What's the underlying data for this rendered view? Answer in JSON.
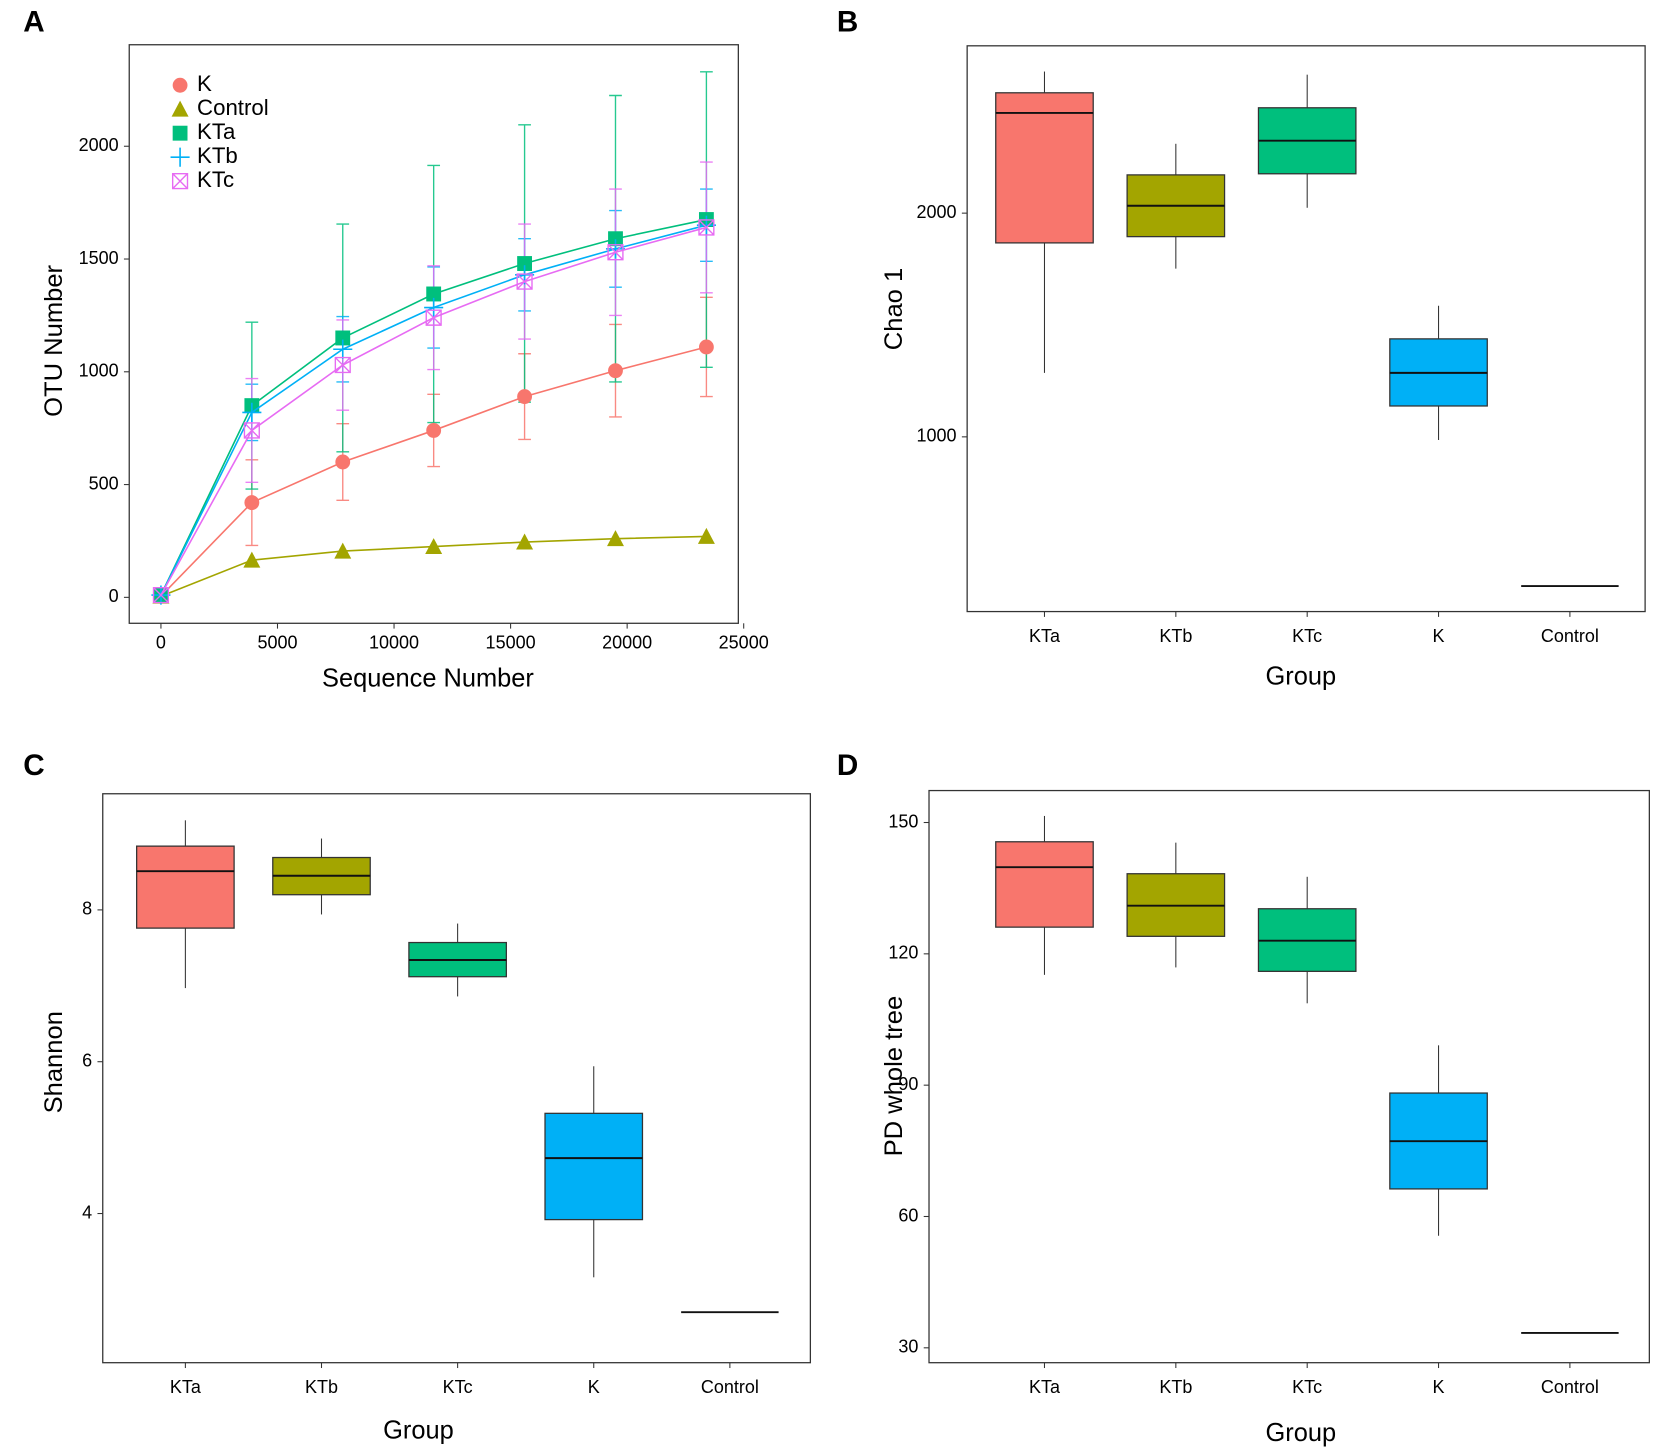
{
  "chart_data": [
    {
      "type": "line",
      "label": "A",
      "x_label": "Sequence Number",
      "y_label": "OTU Number",
      "x": [
        0,
        3900,
        7800,
        11700,
        15600,
        19500,
        23400
      ],
      "series": [
        {
          "name": "K",
          "color": "#F8766D",
          "marker": "circle",
          "values": [
            5,
            420,
            600,
            740,
            890,
            1005,
            1110
          ],
          "errors": [
            5,
            190,
            170,
            160,
            190,
            205,
            220
          ]
        },
        {
          "name": "Control",
          "color": "#A3A500",
          "marker": "triangle",
          "values": [
            5,
            165,
            205,
            225,
            245,
            260,
            270
          ]
        },
        {
          "name": "KTa",
          "color": "#00BF7D",
          "marker": "square",
          "values": [
            10,
            850,
            1150,
            1345,
            1480,
            1590,
            1675
          ],
          "errors": [
            10,
            370,
            505,
            570,
            615,
            635,
            655
          ]
        },
        {
          "name": "KTb",
          "color": "#00B0F6",
          "marker": "plus",
          "values": [
            10,
            820,
            1100,
            1285,
            1430,
            1545,
            1650
          ],
          "errors": [
            10,
            125,
            145,
            180,
            160,
            170,
            160
          ]
        },
        {
          "name": "KTc",
          "color": "#E76BF3",
          "marker": "boxx",
          "values": [
            10,
            740,
            1030,
            1240,
            1400,
            1530,
            1640
          ],
          "errors": [
            10,
            230,
            200,
            230,
            255,
            280,
            290
          ]
        }
      ],
      "xlim": [
        -1360,
        24770
      ],
      "xticks": [
        0,
        5000,
        10000,
        15000,
        20000,
        25000
      ],
      "ylim": [
        -115,
        2450
      ],
      "yticks": [
        0,
        500,
        1000,
        1500,
        2000
      ],
      "legend": "upper left"
    },
    {
      "type": "box",
      "label": "B",
      "x_label": "Group",
      "y_label": "Chao 1",
      "categories": [
        "KTa",
        "KTb",
        "KTc",
        "K",
        "Control"
      ],
      "colors": [
        "#F8766D",
        "#A3A500",
        "#00BF7D",
        "#00B0F6",
        "#E76BF3"
      ],
      "max": [
        2633,
        2310,
        2619,
        1586,
        333
      ],
      "q3": [
        2538,
        2171,
        2471,
        1438,
        333
      ],
      "median": [
        2448,
        2033,
        2324,
        1286,
        333
      ],
      "q1": [
        1867,
        1895,
        2176,
        1138,
        333
      ],
      "min": [
        1286,
        1752,
        2024,
        986,
        333
      ],
      "ylim": [
        219,
        2748
      ],
      "yticks": [
        1000,
        2000
      ]
    },
    {
      "type": "box",
      "label": "C",
      "x_label": "Group",
      "y_label": "Shannon",
      "categories": [
        "KTa",
        "KTb",
        "KTc",
        "K",
        "Control"
      ],
      "colors": [
        "#F8766D",
        "#A3A500",
        "#00BF7D",
        "#00B0F6",
        "#E76BF3"
      ],
      "max": [
        9.18,
        8.94,
        7.82,
        5.94,
        2.7
      ],
      "q3": [
        8.84,
        8.69,
        7.57,
        5.32,
        2.7
      ],
      "median": [
        8.51,
        8.45,
        7.34,
        4.73,
        2.7
      ],
      "q1": [
        7.76,
        8.2,
        7.12,
        3.92,
        2.7
      ],
      "min": [
        6.97,
        7.94,
        6.86,
        3.16,
        2.7
      ],
      "ylim": [
        2.035,
        9.53
      ],
      "yticks": [
        4,
        6,
        8
      ]
    },
    {
      "type": "box",
      "label": "D",
      "x_label": "Group",
      "y_label": "PD whole tree",
      "categories": [
        "KTa",
        "KTb",
        "KTc",
        "K",
        "Control"
      ],
      "colors": [
        "#F8766D",
        "#A3A500",
        "#00BF7D",
        "#00B0F6",
        "#E76BF3"
      ],
      "max": [
        151.5,
        145.4,
        137.6,
        99.1,
        33.4
      ],
      "q3": [
        145.6,
        138.3,
        130.3,
        88.2,
        33.4
      ],
      "median": [
        139.8,
        131,
        123,
        77.2,
        33.4
      ],
      "q1": [
        126.1,
        124,
        116,
        66.3,
        33.4
      ],
      "min": [
        115.2,
        116.9,
        108.7,
        55.6,
        33.4
      ],
      "ylim": [
        26.6,
        157.3
      ],
      "yticks": [
        30,
        60,
        90,
        120,
        150
      ]
    }
  ]
}
